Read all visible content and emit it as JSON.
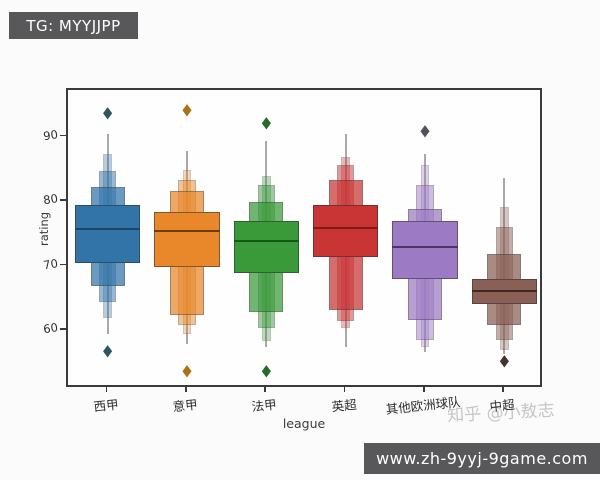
{
  "overlays": {
    "tg_badge": "TG: MYYJJPP",
    "url_badge": "www.zh-9yyj-9game.com",
    "watermark": "知乎 @小敖志"
  },
  "chart_data": {
    "type": "boxen",
    "title": "",
    "xlabel": "league",
    "ylabel": "rating",
    "categories": [
      "西甲",
      "意甲",
      "法甲",
      "英超",
      "其他欧洲球队",
      "中超"
    ],
    "yticks": [
      90,
      80,
      70,
      60
    ],
    "ylim": [
      51.0,
      97.4
    ],
    "grid": false,
    "legend": "none",
    "level_width_fractions": [
      0.82,
      0.43,
      0.215,
      0.11
    ],
    "level_opacities": [
      1,
      0.72,
      0.5,
      0.35
    ],
    "series": [
      {
        "name": "西甲",
        "color": "#3274a8",
        "median_color": "#1d4663",
        "outlier_color": "#2f5560",
        "median": 75.8,
        "levels": [
          {
            "lo": 70.5,
            "hi": 79.5
          },
          {
            "lo": 67.0,
            "hi": 82.3
          },
          {
            "lo": 64.5,
            "hi": 84.9
          },
          {
            "lo": 62.0,
            "hi": 87.4
          }
        ],
        "whisker": {
          "lo": 59.5,
          "hi": 90.5
        },
        "outliers": [
          94.0,
          57.0
        ]
      },
      {
        "name": "意甲",
        "color": "#e8882a",
        "median_color": "#6b3d0e",
        "outlier_color": "#a87414",
        "median": 75.5,
        "levels": [
          {
            "lo": 70.0,
            "hi": 78.4
          },
          {
            "lo": 62.5,
            "hi": 81.8
          },
          {
            "lo": 61.0,
            "hi": 83.5
          },
          {
            "lo": 59.5,
            "hi": 85.0
          }
        ],
        "whisker": {
          "lo": 58.0,
          "hi": 88.0
        },
        "outliers": [
          94.5,
          54.0
        ]
      },
      {
        "name": "法甲",
        "color": "#3a9a3a",
        "median_color": "#155915",
        "outlier_color": "#276b27",
        "median": 74.0,
        "levels": [
          {
            "lo": 69.0,
            "hi": 77.1
          },
          {
            "lo": 63.0,
            "hi": 80.0
          },
          {
            "lo": 60.5,
            "hi": 82.7
          },
          {
            "lo": 58.5,
            "hi": 84.0
          }
        ],
        "whisker": {
          "lo": 57.5,
          "hi": 89.5
        },
        "outliers": [
          92.5,
          54.0
        ]
      },
      {
        "name": "英超",
        "color": "#c93435",
        "median_color": "#801b1c",
        "outlier_color": "#6e1516",
        "median": 76.0,
        "levels": [
          {
            "lo": 71.5,
            "hi": 79.5
          },
          {
            "lo": 63.2,
            "hi": 83.5
          },
          {
            "lo": 61.5,
            "hi": 85.7
          },
          {
            "lo": 60.5,
            "hi": 87.0
          }
        ],
        "whisker": {
          "lo": 57.5,
          "hi": 90.5
        },
        "outliers": []
      },
      {
        "name": "其他欧洲球队",
        "color": "#9d7bc4",
        "median_color": "#4a3566",
        "outlier_color": "#55505c",
        "median": 73.0,
        "levels": [
          {
            "lo": 68.0,
            "hi": 77.0
          },
          {
            "lo": 61.7,
            "hi": 79.0
          },
          {
            "lo": 58.6,
            "hi": 82.6
          },
          {
            "lo": 57.5,
            "hi": 85.7
          }
        ],
        "whisker": {
          "lo": 56.8,
          "hi": 87.4
        },
        "outliers": [
          91.2
        ]
      },
      {
        "name": "中超",
        "color": "#8a5f55",
        "median_color": "#3c2a26",
        "outlier_color": "#413431",
        "median": 66.2,
        "levels": [
          {
            "lo": 64.2,
            "hi": 68.0
          },
          {
            "lo": 61.0,
            "hi": 71.9
          },
          {
            "lo": 58.6,
            "hi": 76.1
          },
          {
            "lo": 57.0,
            "hi": 79.2
          }
        ],
        "whisker": {
          "lo": 56.5,
          "hi": 83.8
        },
        "outliers": [
          55.5
        ]
      }
    ]
  }
}
